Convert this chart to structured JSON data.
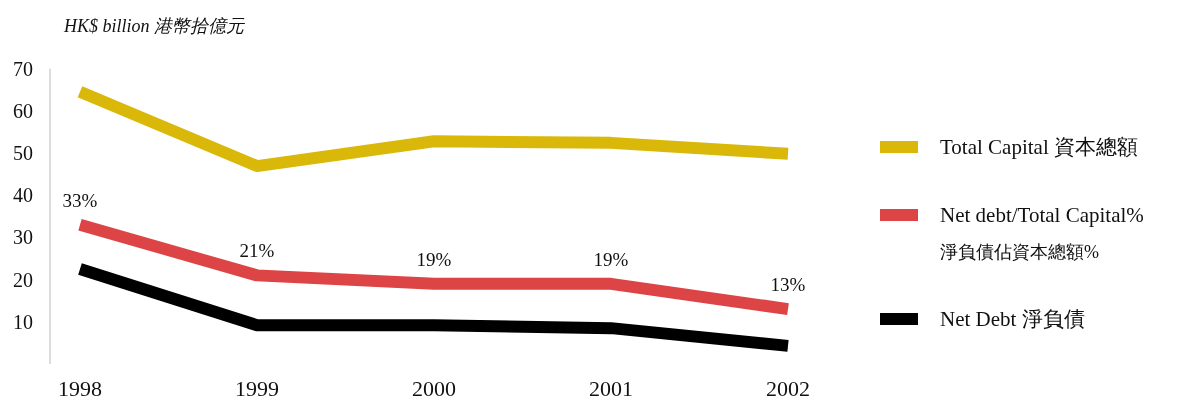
{
  "chart_data": {
    "type": "line",
    "ylabel": "HK$ billion 港幣拾億元",
    "categories": [
      "1998",
      "1999",
      "2000",
      "2001",
      "2002"
    ],
    "series": [
      {
        "name": "Total Capital 資本總額",
        "color": "#d9b80a",
        "values": [
          64.5,
          46.9,
          52.8,
          52.4,
          49.8
        ]
      },
      {
        "name": "Net debt/Total Capital%\n淨負債佔資本總額%",
        "color": "#dc4446",
        "values": [
          33,
          21,
          19,
          19,
          13
        ],
        "value_labels": [
          "33%",
          "21%",
          "19%",
          "19%",
          "13%"
        ]
      },
      {
        "name": "Net Debt 淨負債",
        "color": "#000000",
        "values": [
          22.5,
          9.2,
          9.2,
          8.5,
          4.3
        ]
      }
    ],
    "ylim": [
      0,
      70
    ],
    "yticks": [
      10,
      20,
      30,
      40,
      50,
      60,
      70
    ],
    "grid": false,
    "legend": "right",
    "marker": "none",
    "line_style": "solid"
  }
}
